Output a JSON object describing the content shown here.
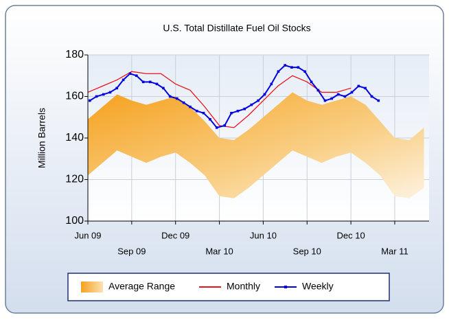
{
  "chart_data": {
    "type": "line",
    "title": "U.S. Total Distillate Fuel Oil Stocks",
    "y_label": "Million Barrels",
    "ylim": [
      100,
      180
    ],
    "yticks": [
      100,
      120,
      140,
      160,
      180
    ],
    "xlim": [
      "2009-06",
      "2011-05"
    ],
    "xticks": [
      {
        "value": "2009-06",
        "label": "Jun 09"
      },
      {
        "value": "2009-09",
        "label": "Sep 09"
      },
      {
        "value": "2009-12",
        "label": "Dec 09"
      },
      {
        "value": "2010-03",
        "label": "Mar 10"
      },
      {
        "value": "2010-06",
        "label": "Jun 10"
      },
      {
        "value": "2010-09",
        "label": "Sep 10"
      },
      {
        "value": "2010-12",
        "label": "Dec 10"
      },
      {
        "value": "2011-03",
        "label": "Mar 11"
      }
    ],
    "grid": true,
    "series": [
      {
        "name": "Average Range",
        "type": "range",
        "color": "#f5a11e",
        "x": [
          "2009-06",
          "2009-07",
          "2009-08",
          "2009-09",
          "2009-10",
          "2009-11",
          "2009-12",
          "2010-01",
          "2010-02",
          "2010-03",
          "2010-04",
          "2010-05",
          "2010-06",
          "2010-07",
          "2010-08",
          "2010-09",
          "2010-10",
          "2010-11",
          "2010-12",
          "2011-01",
          "2011-02",
          "2011-03",
          "2011-04",
          "2011-05"
        ],
        "upper": [
          149,
          155,
          161,
          158,
          156,
          158,
          160,
          155,
          148,
          140,
          139,
          144,
          150,
          156,
          162,
          158,
          156,
          158,
          160,
          156,
          148,
          140,
          139,
          145
        ],
        "lower": [
          122,
          128,
          134,
          131,
          128,
          131,
          133,
          128,
          122,
          112,
          111,
          116,
          122,
          128,
          134,
          131,
          128,
          131,
          133,
          128,
          122,
          112,
          111,
          116
        ]
      },
      {
        "name": "Monthly",
        "type": "line",
        "color": "#e8141c",
        "x": [
          "2009-06",
          "2009-07",
          "2009-08",
          "2009-09",
          "2009-10",
          "2009-11",
          "2009-12",
          "2010-01",
          "2010-02",
          "2010-03",
          "2010-04",
          "2010-05",
          "2010-06",
          "2010-07",
          "2010-08",
          "2010-09",
          "2010-10",
          "2010-11",
          "2010-12"
        ],
        "values": [
          162,
          165,
          168,
          172,
          171,
          171,
          166,
          163,
          155,
          146,
          145,
          151,
          158,
          165,
          170,
          167,
          162,
          162,
          164
        ]
      },
      {
        "name": "Weekly",
        "type": "line",
        "markers": true,
        "color": "#0000e0",
        "x": [
          "2009-06-05",
          "2009-06-19",
          "2009-07-03",
          "2009-07-17",
          "2009-07-31",
          "2009-08-14",
          "2009-08-28",
          "2009-09-11",
          "2009-09-25",
          "2009-10-09",
          "2009-10-23",
          "2009-11-06",
          "2009-11-20",
          "2009-12-04",
          "2009-12-18",
          "2010-01-01",
          "2010-01-15",
          "2010-01-29",
          "2010-02-12",
          "2010-02-26",
          "2010-03-12",
          "2010-03-26",
          "2010-04-09",
          "2010-04-23",
          "2010-05-07",
          "2010-05-21",
          "2010-06-04",
          "2010-06-18",
          "2010-07-02",
          "2010-07-16",
          "2010-07-30",
          "2010-08-13",
          "2010-08-27",
          "2010-09-10",
          "2010-09-24",
          "2010-10-08",
          "2010-10-22",
          "2010-11-05",
          "2010-11-19",
          "2010-12-03",
          "2010-12-17",
          "2010-12-31",
          "2011-01-14",
          "2011-01-28"
        ],
        "values": [
          158,
          160,
          161,
          162,
          164,
          168,
          171,
          170,
          167,
          167,
          166,
          164,
          160,
          159,
          157,
          155,
          153,
          152,
          149,
          145,
          146,
          152,
          153,
          154,
          156,
          158,
          161,
          166,
          172,
          175,
          174,
          174,
          172,
          167,
          163,
          158,
          159,
          161,
          160,
          162,
          165,
          164,
          160,
          158
        ]
      }
    ]
  }
}
